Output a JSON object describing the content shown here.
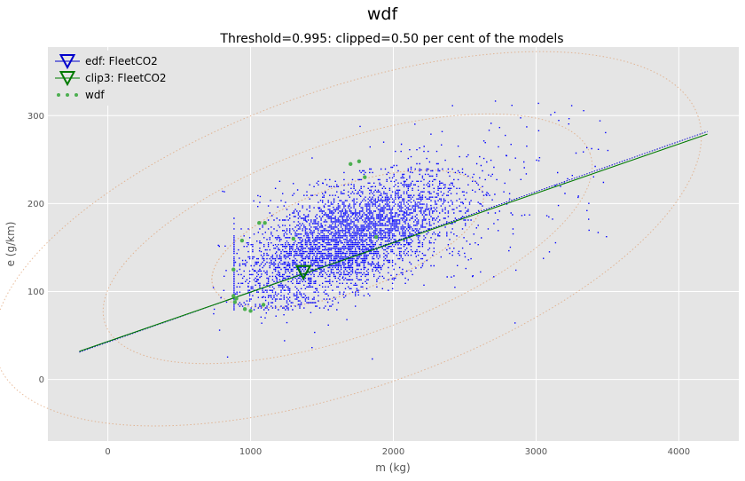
{
  "chart_data": {
    "type": "scatter",
    "suptitle": "wdf",
    "title": "Threshold=0.995: clipped=0.50 per cent of the models",
    "xlabel": "m (kg)",
    "ylabel": "e (g/km)",
    "xlim": [
      -420,
      4420
    ],
    "ylim": [
      -70,
      378
    ],
    "xticks": [
      0,
      1000,
      2000,
      3000,
      4000
    ],
    "yticks": [
      0,
      100,
      200,
      300
    ],
    "grid": true,
    "legend_position": "top-left",
    "colors": {
      "background": "#e5e5e5",
      "grid": "#ffffff",
      "points": "#0000ff",
      "edf_line": "#0000cc",
      "clip_line": "#007a00",
      "wdf_points": "#4caf50",
      "contours": "#e0a070"
    },
    "legend": [
      {
        "label": "edf: FleetCO2",
        "marker": "triangle-down",
        "color": "#0000cc"
      },
      {
        "label": "clip3: FleetCO2",
        "marker": "triangle-down",
        "color": "#007a00"
      },
      {
        "label": "wdf",
        "marker": "dots",
        "color": "#4caf50"
      }
    ],
    "series": [
      {
        "name": "edf: FleetCO2",
        "kind": "regression-line",
        "x": [
          -200,
          4200
        ],
        "y": [
          31,
          282
        ],
        "center": {
          "x": 1370,
          "y": 122
        }
      },
      {
        "name": "clip3: FleetCO2",
        "kind": "regression-line",
        "x": [
          -200,
          4200
        ],
        "y": [
          32,
          279
        ],
        "center": {
          "x": 1370,
          "y": 122
        }
      },
      {
        "name": "wdf",
        "kind": "outlier-points",
        "points": [
          [
            880,
            125
          ],
          [
            880,
            95
          ],
          [
            890,
            88
          ],
          [
            900,
            92
          ],
          [
            940,
            158
          ],
          [
            960,
            80
          ],
          [
            1000,
            78
          ],
          [
            1060,
            178
          ],
          [
            1090,
            85
          ],
          [
            1100,
            178
          ],
          [
            1300,
            160
          ],
          [
            1700,
            245
          ],
          [
            1760,
            248
          ],
          [
            1800,
            230
          ],
          [
            1880,
            162
          ]
        ]
      }
    ],
    "cloud": {
      "center": {
        "x": 1680,
        "y": 160
      },
      "slope": 0.057,
      "spread_x": 380,
      "spread_y": 28
    },
    "contours": [
      {
        "cx": 1680,
        "cy": 160,
        "a": 1000,
        "b": 60,
        "angle_data_slope": 0.057
      },
      {
        "cx": 1680,
        "cy": 160,
        "a": 1800,
        "b": 110,
        "angle_data_slope": 0.057
      },
      {
        "cx": 1680,
        "cy": 160,
        "a": 2600,
        "b": 170,
        "angle_data_slope": 0.057
      }
    ]
  }
}
